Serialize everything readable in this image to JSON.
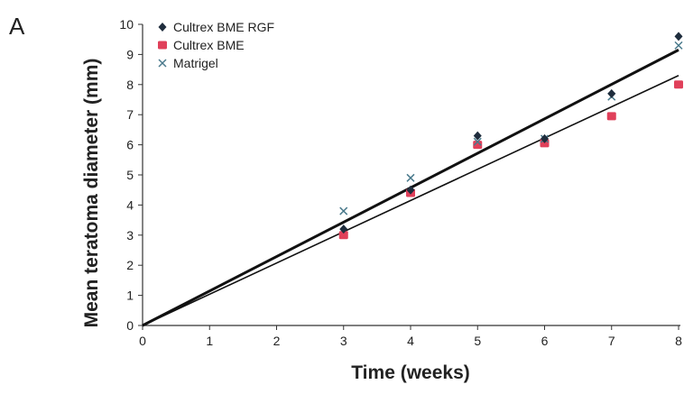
{
  "panel_label": "A",
  "chart_data": {
    "type": "scatter",
    "xlabel": "Time (weeks)",
    "ylabel": "Mean teratoma diameter (mm)",
    "xlim": [
      0,
      8
    ],
    "ylim": [
      0,
      10
    ],
    "x_ticks": [
      "0",
      "1",
      "2",
      "3",
      "4",
      "5",
      "6",
      "7",
      "8"
    ],
    "y_ticks": [
      "0",
      "1",
      "2",
      "3",
      "4",
      "5",
      "6",
      "7",
      "8",
      "9",
      "10"
    ],
    "legend_position": "top-left",
    "series": [
      {
        "name": "Cultrex BME RGF",
        "marker": "diamond",
        "color": "#1f2d3d",
        "x": [
          3,
          4,
          5,
          6,
          7,
          8
        ],
        "y": [
          3.2,
          4.5,
          6.3,
          6.2,
          7.7,
          9.6
        ]
      },
      {
        "name": "Cultrex BME",
        "marker": "square",
        "color": "#e0405a",
        "x": [
          3,
          4,
          5,
          6,
          7,
          8
        ],
        "y": [
          3.0,
          4.4,
          6.0,
          6.05,
          6.95,
          8.0
        ]
      },
      {
        "name": "Matrigel",
        "marker": "x",
        "color": "#4a7a8c",
        "x": [
          3,
          4,
          5,
          6,
          7,
          8
        ],
        "y": [
          3.8,
          4.9,
          6.1,
          6.2,
          7.6,
          9.3
        ]
      }
    ],
    "trendlines": [
      {
        "x": [
          0,
          8
        ],
        "y": [
          0,
          9.15
        ],
        "weight": "heavy",
        "color": "#111111"
      },
      {
        "x": [
          0,
          8
        ],
        "y": [
          0,
          8.3
        ],
        "weight": "light",
        "color": "#111111"
      }
    ]
  }
}
